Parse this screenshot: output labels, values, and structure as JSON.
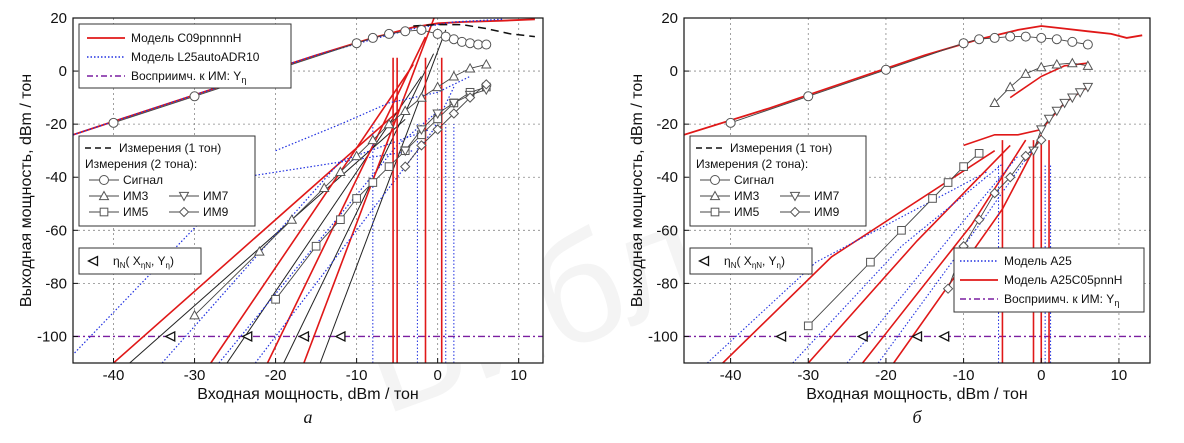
{
  "chart_data": [
    {
      "type": "line",
      "panel_label": "а",
      "xlabel": "Входная мощность,  dBm / тон",
      "ylabel": "Выходная мощность,  dBm / тон",
      "xlim": [
        -45,
        13
      ],
      "ylim": [
        -110,
        20
      ],
      "xticks": [
        -40,
        -30,
        -20,
        -10,
        0,
        10
      ],
      "yticks": [
        20,
        0,
        -20,
        -40,
        -60,
        -80,
        -100
      ],
      "grid": true,
      "legend_top": {
        "placement": "top-left",
        "entries": [
          {
            "label": "Модель C09pnnnnH",
            "style": "red-solid"
          },
          {
            "label": "Модель L25autoADR10",
            "style": "blue-dotted"
          },
          {
            "label": "Восприимч. к ИМ: Y",
            "sub": "η",
            "style": "purple-dashdot"
          }
        ]
      },
      "legend_meas": {
        "placement": "middle-left",
        "line1": "Измерения (1 тон)",
        "line2": "Измерения (2 тона):",
        "signal": "Сигнал",
        "im3": "ИМ3",
        "im5": "ИМ5",
        "im7": "ИМ7",
        "im9": "ИМ9"
      },
      "legend_eta": {
        "label": "η",
        "sub": "N",
        "args": "( X",
        "argsub1": "ηN",
        "mid": ", Y",
        "argsub2": "η",
        "end": ")"
      },
      "susceptibility_level": -100,
      "eta_markers_x": [
        -33,
        -23.5,
        -16.5,
        -12
      ],
      "series": [
        {
          "name": "Модель C09pnnnnH — сигнал",
          "x": [
            -45,
            -35,
            -25,
            -15,
            -8,
            -3,
            0,
            3,
            8,
            12
          ],
          "y": [
            -24,
            -14,
            -4,
            6,
            12.5,
            16.5,
            18,
            18.5,
            19,
            19.5
          ]
        },
        {
          "name": "Модель L25autoADR10 — сигнал",
          "x": [
            -45,
            -35,
            -25,
            -15,
            -8,
            -3,
            0,
            2,
            5,
            8
          ],
          "y": [
            -24,
            -14,
            -4,
            6,
            12,
            16,
            17.5,
            18.5,
            19,
            19.5
          ]
        },
        {
          "name": "Измерения (1 тон)",
          "x": [
            -3,
            0,
            3,
            6,
            9,
            12
          ],
          "y": [
            17,
            17.5,
            17.5,
            16,
            14,
            13
          ]
        },
        {
          "name": "Сигнал",
          "x": [
            -40,
            -30,
            -20,
            -10,
            -8,
            -6,
            -4,
            -2,
            0,
            1,
            2,
            3,
            4,
            5,
            6
          ],
          "y": [
            -19.5,
            -9.5,
            0.5,
            10.5,
            12.5,
            14,
            15,
            15.5,
            14,
            13,
            12,
            11,
            10.5,
            10,
            10
          ]
        },
        {
          "name": "ИМ3",
          "x": [
            -30,
            -22,
            -18,
            -14,
            -12,
            -10,
            -8,
            -6,
            -4,
            -2,
            0,
            2,
            4,
            6
          ],
          "y": [
            -92,
            -68,
            -56,
            -44,
            -38,
            -32,
            -26,
            -20,
            -15,
            -10,
            -6,
            -2,
            1,
            2.5
          ]
        },
        {
          "name": "ИМ5",
          "x": [
            -20,
            -15,
            -12,
            -10,
            -8,
            -6,
            -4,
            -2,
            0,
            2,
            4,
            6
          ],
          "y": [
            -86,
            -66,
            -56,
            -48,
            -42,
            -36,
            -30,
            -24,
            -18,
            -12,
            -8,
            -6
          ]
        },
        {
          "name": "ИМ7",
          "x": [
            -4,
            -2,
            0,
            2,
            4,
            6
          ],
          "y": [
            -30,
            -22,
            -16,
            -12,
            -9,
            -7
          ]
        },
        {
          "name": "ИМ9",
          "x": [
            -4,
            -2,
            0,
            2,
            4,
            6
          ],
          "y": [
            -36,
            -28,
            -22,
            -16,
            -10,
            -5
          ]
        }
      ]
    },
    {
      "type": "line",
      "panel_label": "б",
      "xlabel": "Входная мощность,  dBm / тон",
      "ylabel": "Выходная мощность,  dBm / тон",
      "xlim": [
        -46,
        14
      ],
      "ylim": [
        -110,
        20
      ],
      "xticks": [
        -40,
        -30,
        -20,
        -10,
        0,
        10
      ],
      "yticks": [
        20,
        0,
        -20,
        -40,
        -60,
        -80,
        -100
      ],
      "grid": true,
      "legend_meas": {
        "placement": "middle-left",
        "line1": "Измерения (1 тон)",
        "line2": "Измерения (2 тона):",
        "signal": "Сигнал",
        "im3": "ИМ3",
        "im5": "ИМ5",
        "im7": "ИМ7",
        "im9": "ИМ9"
      },
      "legend_eta": {
        "label": "η",
        "sub": "N",
        "args": "( X",
        "argsub1": "ηN",
        "mid": ", Y",
        "argsub2": "η",
        "end": ")"
      },
      "legend_models": {
        "placement": "bottom-right",
        "entries": [
          {
            "label": "Модель A25",
            "style": "blue-dotted"
          },
          {
            "label": "Модель A25C05pnnH",
            "style": "red-solid"
          },
          {
            "label": "Восприимч. к ИМ: Y",
            "sub": "η",
            "style": "purple-dashdot"
          }
        ]
      },
      "susceptibility_level": -100,
      "eta_markers_x": [
        -33.5,
        -23,
        -16,
        -12.5
      ],
      "series": [
        {
          "name": "Модель A25C05pnnH — сигнал",
          "x": [
            -46,
            -35,
            -25,
            -15,
            -8,
            -3,
            0,
            3,
            6,
            9,
            11,
            13
          ],
          "y": [
            -24,
            -14,
            -4,
            6,
            12,
            15.5,
            17,
            16,
            15,
            14,
            12.5,
            13.5
          ]
        },
        {
          "name": "Сигнал",
          "x": [
            -40,
            -30,
            -20,
            -10,
            -8,
            -6,
            -4,
            -2,
            0,
            2,
            4,
            6
          ],
          "y": [
            -19.5,
            -9.5,
            0.5,
            10.5,
            12,
            12.5,
            13,
            13,
            12.5,
            12,
            11,
            10
          ]
        },
        {
          "name": "ИМ3",
          "x": [
            -6,
            -4,
            -2,
            0,
            2,
            4,
            6
          ],
          "y": [
            -12,
            -6,
            -1,
            1.5,
            2.5,
            3,
            2
          ]
        },
        {
          "name": "ИМ5",
          "x": [
            -30,
            -22,
            -18,
            -14,
            -12,
            -10,
            -8
          ],
          "y": [
            -96,
            -72,
            -60,
            -48,
            -42,
            -36,
            -31
          ]
        },
        {
          "name": "ИМ7",
          "x": [
            -1,
            0,
            1,
            2,
            3,
            4,
            5,
            6
          ],
          "y": [
            -30,
            -22,
            -18,
            -15,
            -12,
            -10,
            -8,
            -6
          ]
        },
        {
          "name": "ИМ9",
          "x": [
            -12,
            -10,
            -8,
            -6,
            -4,
            -2,
            0
          ],
          "y": [
            -82,
            -66,
            -56,
            -46,
            -40,
            -32,
            -26
          ]
        }
      ]
    }
  ]
}
